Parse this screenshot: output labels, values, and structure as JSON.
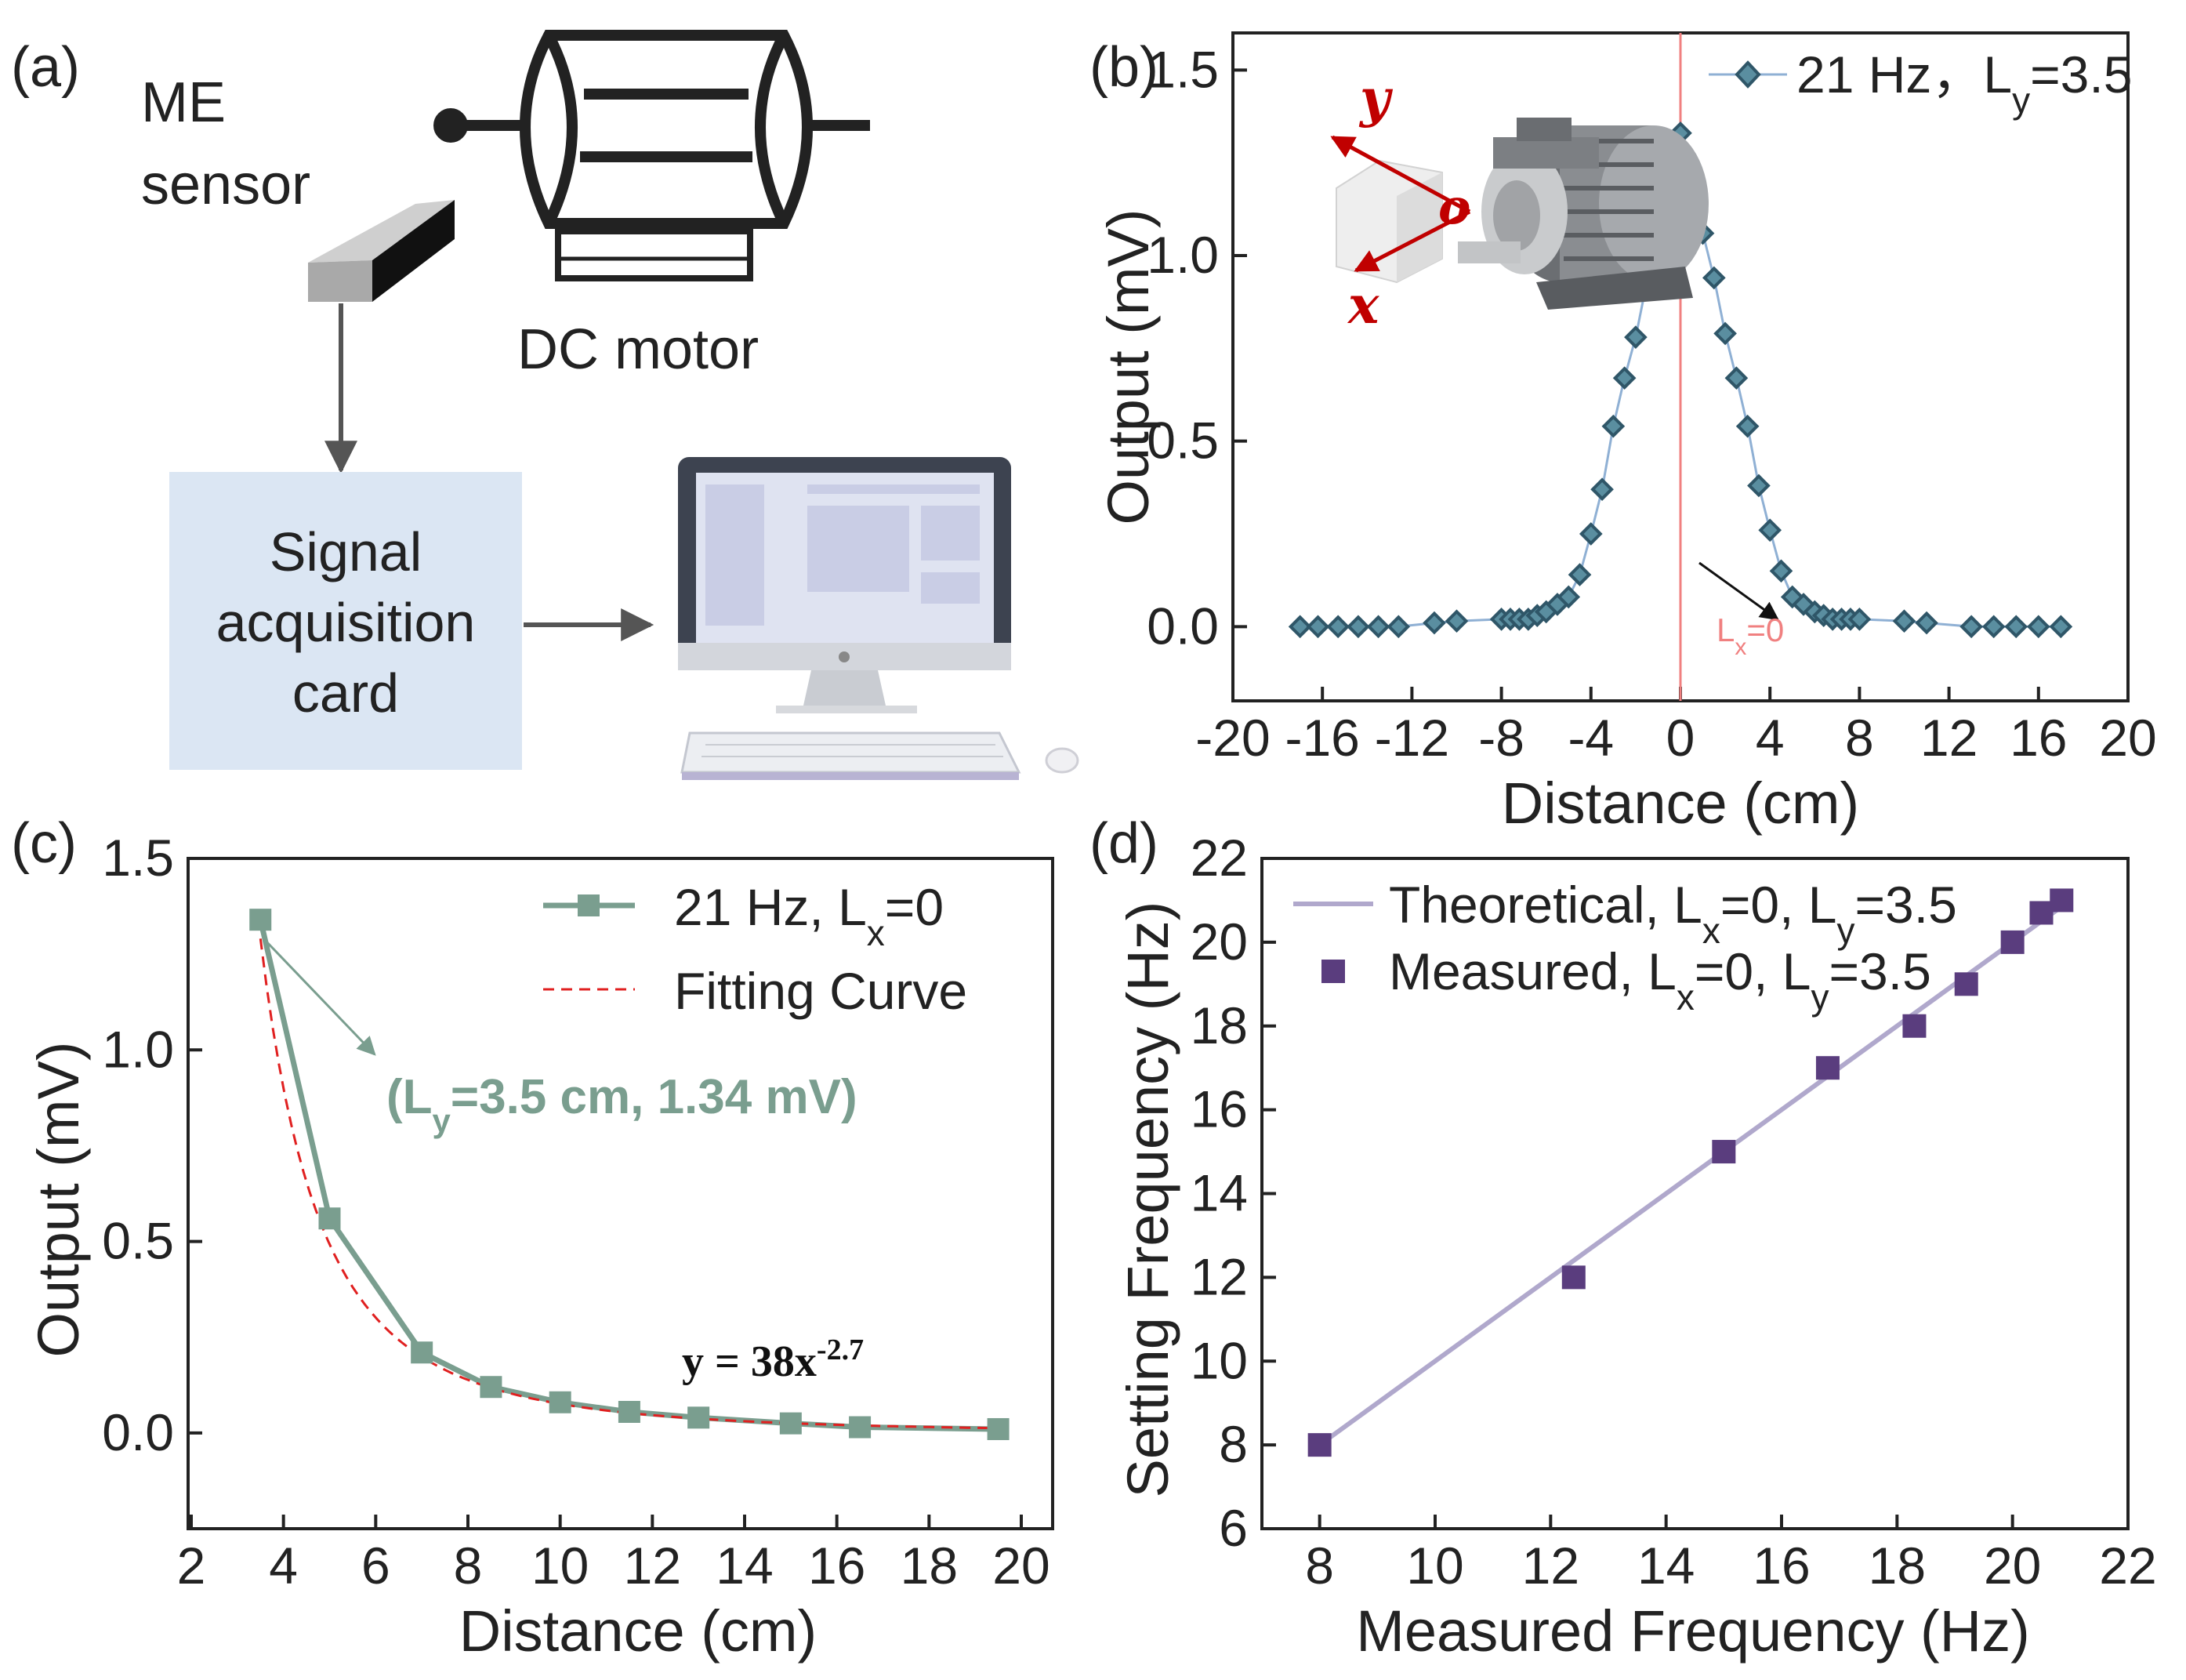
{
  "panel_labels": {
    "a": "(a)",
    "b": "(b)",
    "c": "(c)",
    "d": "(d)"
  },
  "schematic": {
    "sensor_label_1": "ME",
    "sensor_label_2": "sensor",
    "motor_label": "DC motor",
    "card_label_1": "Signal",
    "card_label_2": "acquisition",
    "card_label_3": "card"
  },
  "colors": {
    "b_series": "#2f5668",
    "b_line": "#8fb0d4",
    "b_marker_fill": "#5a8ea0",
    "marker_line": "#f08080",
    "c_series": "#7a9e8f",
    "c_fit": "#e02020",
    "d_theory": "#b0a8cc",
    "d_measured": "#5a3d7e",
    "axis_red": "#c00000",
    "card_bg": "#dbe6f3"
  },
  "inset_axes": {
    "y": "y",
    "o": "o",
    "x": "x"
  },
  "chart_data": [
    {
      "panel": "b",
      "type": "line",
      "xlabel": "Distance (cm)",
      "ylabel": "Output (mV)",
      "xlim": [
        -20,
        20
      ],
      "ylim": [
        -0.2,
        1.6
      ],
      "xticks": [
        "-20",
        "-16",
        "-12",
        "-8",
        "-4",
        "0",
        "4",
        "8",
        "12",
        "16",
        "20"
      ],
      "yticks": [
        "0.0",
        "0.5",
        "1.0",
        "1.5"
      ],
      "legend_name": "21 Hz，",
      "legend_sub_symbol": "L",
      "legend_sub": "y",
      "legend_value": "=3.5",
      "legend_position": "top-right",
      "marker_label": "L",
      "marker_label_sub": "x",
      "marker_label_value": "=0",
      "series": [
        {
          "name": "21 Hz，Ly=3.5",
          "x": [
            -17,
            -16.2,
            -15.3,
            -14.4,
            -13.5,
            -12.6,
            -11,
            -10,
            -8,
            -7.6,
            -7.2,
            -6.8,
            -6.4,
            -6,
            -5.5,
            -5,
            -4.5,
            -4,
            -3.5,
            -3,
            -2.5,
            -2,
            -1.5,
            -1,
            -0.5,
            0,
            0.5,
            1,
            1.5,
            2,
            2.5,
            3,
            3.5,
            4,
            4.5,
            5,
            5.5,
            6,
            6.4,
            6.8,
            7.2,
            7.6,
            8,
            10,
            11,
            13,
            14,
            15,
            16,
            17
          ],
          "y": [
            0,
            0,
            0,
            0,
            0,
            0,
            0.01,
            0.015,
            0.02,
            0.02,
            0.02,
            0.02,
            0.03,
            0.04,
            0.06,
            0.08,
            0.14,
            0.25,
            0.37,
            0.54,
            0.67,
            0.78,
            0.93,
            1.05,
            1.16,
            1.33,
            1.17,
            1.06,
            0.94,
            0.79,
            0.67,
            0.54,
            0.38,
            0.26,
            0.15,
            0.08,
            0.06,
            0.04,
            0.03,
            0.02,
            0.02,
            0.02,
            0.02,
            0.015,
            0.01,
            0,
            0,
            0,
            0,
            0
          ]
        }
      ]
    },
    {
      "panel": "c",
      "type": "line",
      "xlabel": "Distance (cm)",
      "ylabel": "Output (mV)",
      "xlim": [
        2,
        20
      ],
      "ylim": [
        -0.25,
        1.5
      ],
      "xticks": [
        "2",
        "4",
        "6",
        "8",
        "10",
        "12",
        "14",
        "16",
        "18",
        "20"
      ],
      "yticks": [
        "0.0",
        "0.5",
        "1.0",
        "1.5"
      ],
      "legend": [
        "21 Hz, L",
        "x",
        "=0",
        "Fitting Curve"
      ],
      "legend_position": "top-right",
      "annotation": [
        "(L",
        "y",
        "=3.5 cm, 1.34 mV)"
      ],
      "equation": [
        "y = 38x",
        "-2.7"
      ],
      "series": [
        {
          "name": "21 Hz, Lx=0",
          "x": [
            3.5,
            5,
            7,
            8.5,
            10,
            11.5,
            13,
            15,
            16.5,
            19.5
          ],
          "y": [
            1.34,
            0.56,
            0.21,
            0.12,
            0.08,
            0.055,
            0.04,
            0.025,
            0.015,
            0.01
          ]
        }
      ],
      "fit": {
        "name": "Fitting Curve",
        "a": 38,
        "b": -2.7,
        "x_range": [
          3.5,
          19.5
        ]
      }
    },
    {
      "panel": "d",
      "type": "scatter",
      "xlabel": "Measured Frequency (Hz)",
      "ylabel": "Setting Frequency (Hz)",
      "xlim": [
        7,
        22
      ],
      "ylim": [
        6,
        22
      ],
      "xticks": [
        "8",
        "10",
        "12",
        "14",
        "16",
        "18",
        "20",
        "22"
      ],
      "yticks": [
        "6",
        "8",
        "10",
        "12",
        "14",
        "16",
        "18",
        "20",
        "22"
      ],
      "legend_theory": [
        "Theoretical, L",
        "x",
        "=0, L",
        "y",
        "=3.5"
      ],
      "legend_measured": [
        "Measured, L",
        "x",
        "=0, L",
        "y",
        "=3.5"
      ],
      "legend_position": "top-left",
      "series": [
        {
          "name": "Measured, Lx=0, Ly=3.5",
          "x": [
            8,
            12.4,
            15,
            16.8,
            18.3,
            19.2,
            20,
            20.5,
            20.85
          ],
          "y": [
            8,
            12,
            15,
            17,
            18,
            19,
            20,
            20.7,
            21
          ]
        }
      ],
      "theory_line": {
        "name": "Theoretical, Lx=0, Ly=3.5",
        "x": [
          8,
          21
        ],
        "y": [
          8,
          21
        ]
      }
    }
  ]
}
